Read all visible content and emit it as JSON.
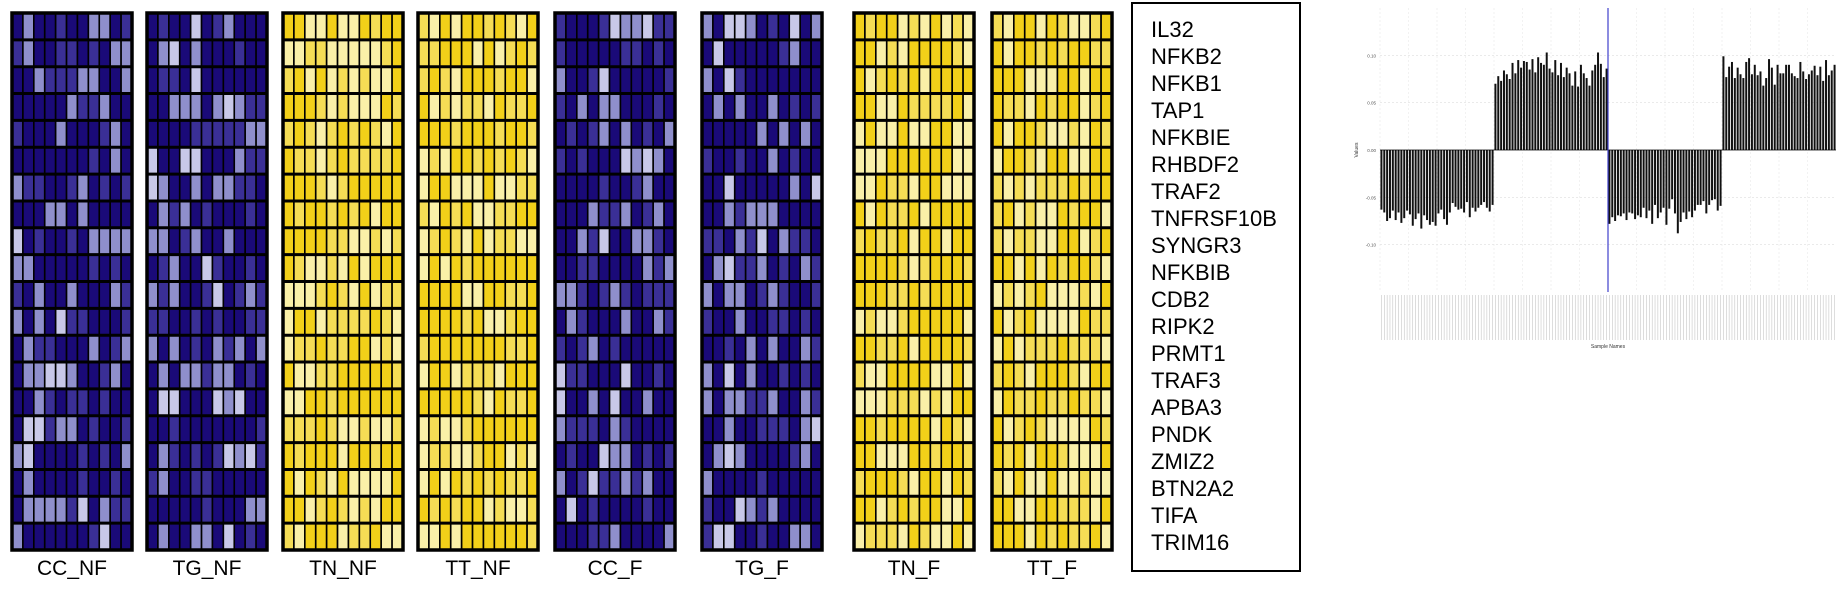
{
  "groups": [
    "CC_NF",
    "TG_NF",
    "TN_NF",
    "TT_NF",
    "CC_F",
    "TG_F",
    "TN_F",
    "TT_F"
  ],
  "group_palette": [
    "blue",
    "blue",
    "yellow",
    "yellow",
    "blue",
    "blue",
    "yellow",
    "yellow"
  ],
  "genes": [
    "IL32",
    "NFKB2",
    "NFKB1",
    "TAP1",
    "NFKBIE",
    "RHBDF2",
    "TRAF2",
    "TNFRSF10B",
    "SYNGR3",
    "NFKBIB",
    "CDB2",
    "RIPK2",
    "PRMT1",
    "TRAF3",
    "APBA3",
    "PNDK",
    "ZMIZ2",
    "BTN2A2",
    "TIFA",
    "TRIM16"
  ],
  "colors": {
    "blue_dark": "#1a0a78",
    "blue_mid": "#3a2f96",
    "blue_light": "#8f8fcc",
    "blue_pale": "#c8c8e8",
    "yellow_bright": "#f2d019",
    "yellow_mid": "#f5dd55",
    "yellow_pale": "#faf0a8",
    "cell_border": "#000000",
    "bar_fill": "#111111",
    "split_line": "#4040cc"
  },
  "chart_data": {
    "type": "bar",
    "ylabel": "Values",
    "xlabel": "Sample Names",
    "ylim": [
      -0.15,
      0.15
    ],
    "yticks": [
      -0.1,
      -0.05,
      0.0,
      0.05,
      0.1
    ],
    "ytick_labels": [
      "-0.10",
      "-0.05",
      "0.00",
      "0.05",
      "0.10"
    ],
    "grid": true,
    "vline_at_index": 80,
    "values": [
      -0.063,
      -0.066,
      -0.075,
      -0.072,
      -0.064,
      -0.074,
      -0.066,
      -0.077,
      -0.072,
      -0.064,
      -0.068,
      -0.08,
      -0.073,
      -0.067,
      -0.083,
      -0.069,
      -0.074,
      -0.079,
      -0.076,
      -0.08,
      -0.067,
      -0.063,
      -0.073,
      -0.079,
      -0.066,
      -0.056,
      -0.06,
      -0.063,
      -0.062,
      -0.066,
      -0.055,
      -0.071,
      -0.061,
      -0.065,
      -0.061,
      -0.058,
      -0.055,
      -0.061,
      -0.065,
      -0.058,
      0.07,
      0.078,
      0.073,
      0.084,
      0.08,
      0.075,
      0.092,
      0.081,
      0.095,
      0.087,
      0.094,
      0.093,
      0.085,
      0.096,
      0.082,
      0.098,
      0.092,
      0.09,
      0.103,
      0.086,
      0.082,
      0.095,
      0.079,
      0.092,
      0.077,
      0.087,
      0.081,
      0.068,
      0.083,
      0.067,
      0.09,
      0.081,
      0.076,
      0.068,
      0.084,
      0.09,
      0.103,
      0.091,
      0.077,
      0.086,
      -0.078,
      -0.071,
      -0.075,
      -0.069,
      -0.07,
      -0.067,
      -0.074,
      -0.066,
      -0.067,
      -0.073,
      -0.069,
      -0.071,
      -0.061,
      -0.072,
      -0.064,
      -0.078,
      -0.058,
      -0.072,
      -0.066,
      -0.061,
      -0.079,
      -0.062,
      -0.052,
      -0.067,
      -0.088,
      -0.076,
      -0.066,
      -0.073,
      -0.065,
      -0.071,
      -0.064,
      -0.058,
      -0.058,
      -0.054,
      -0.067,
      -0.058,
      -0.053,
      -0.052,
      -0.064,
      -0.059,
      0.099,
      0.077,
      0.088,
      0.093,
      0.076,
      0.087,
      0.08,
      0.076,
      0.093,
      0.097,
      0.08,
      0.09,
      0.079,
      0.083,
      0.068,
      0.076,
      0.096,
      0.087,
      0.069,
      0.09,
      0.081,
      0.081,
      0.09,
      0.09,
      0.081,
      0.078,
      0.076,
      0.093,
      0.083,
      0.075,
      0.08,
      0.084,
      0.089,
      0.079,
      0.088,
      0.073,
      0.095,
      0.079,
      0.084,
      0.09
    ]
  }
}
